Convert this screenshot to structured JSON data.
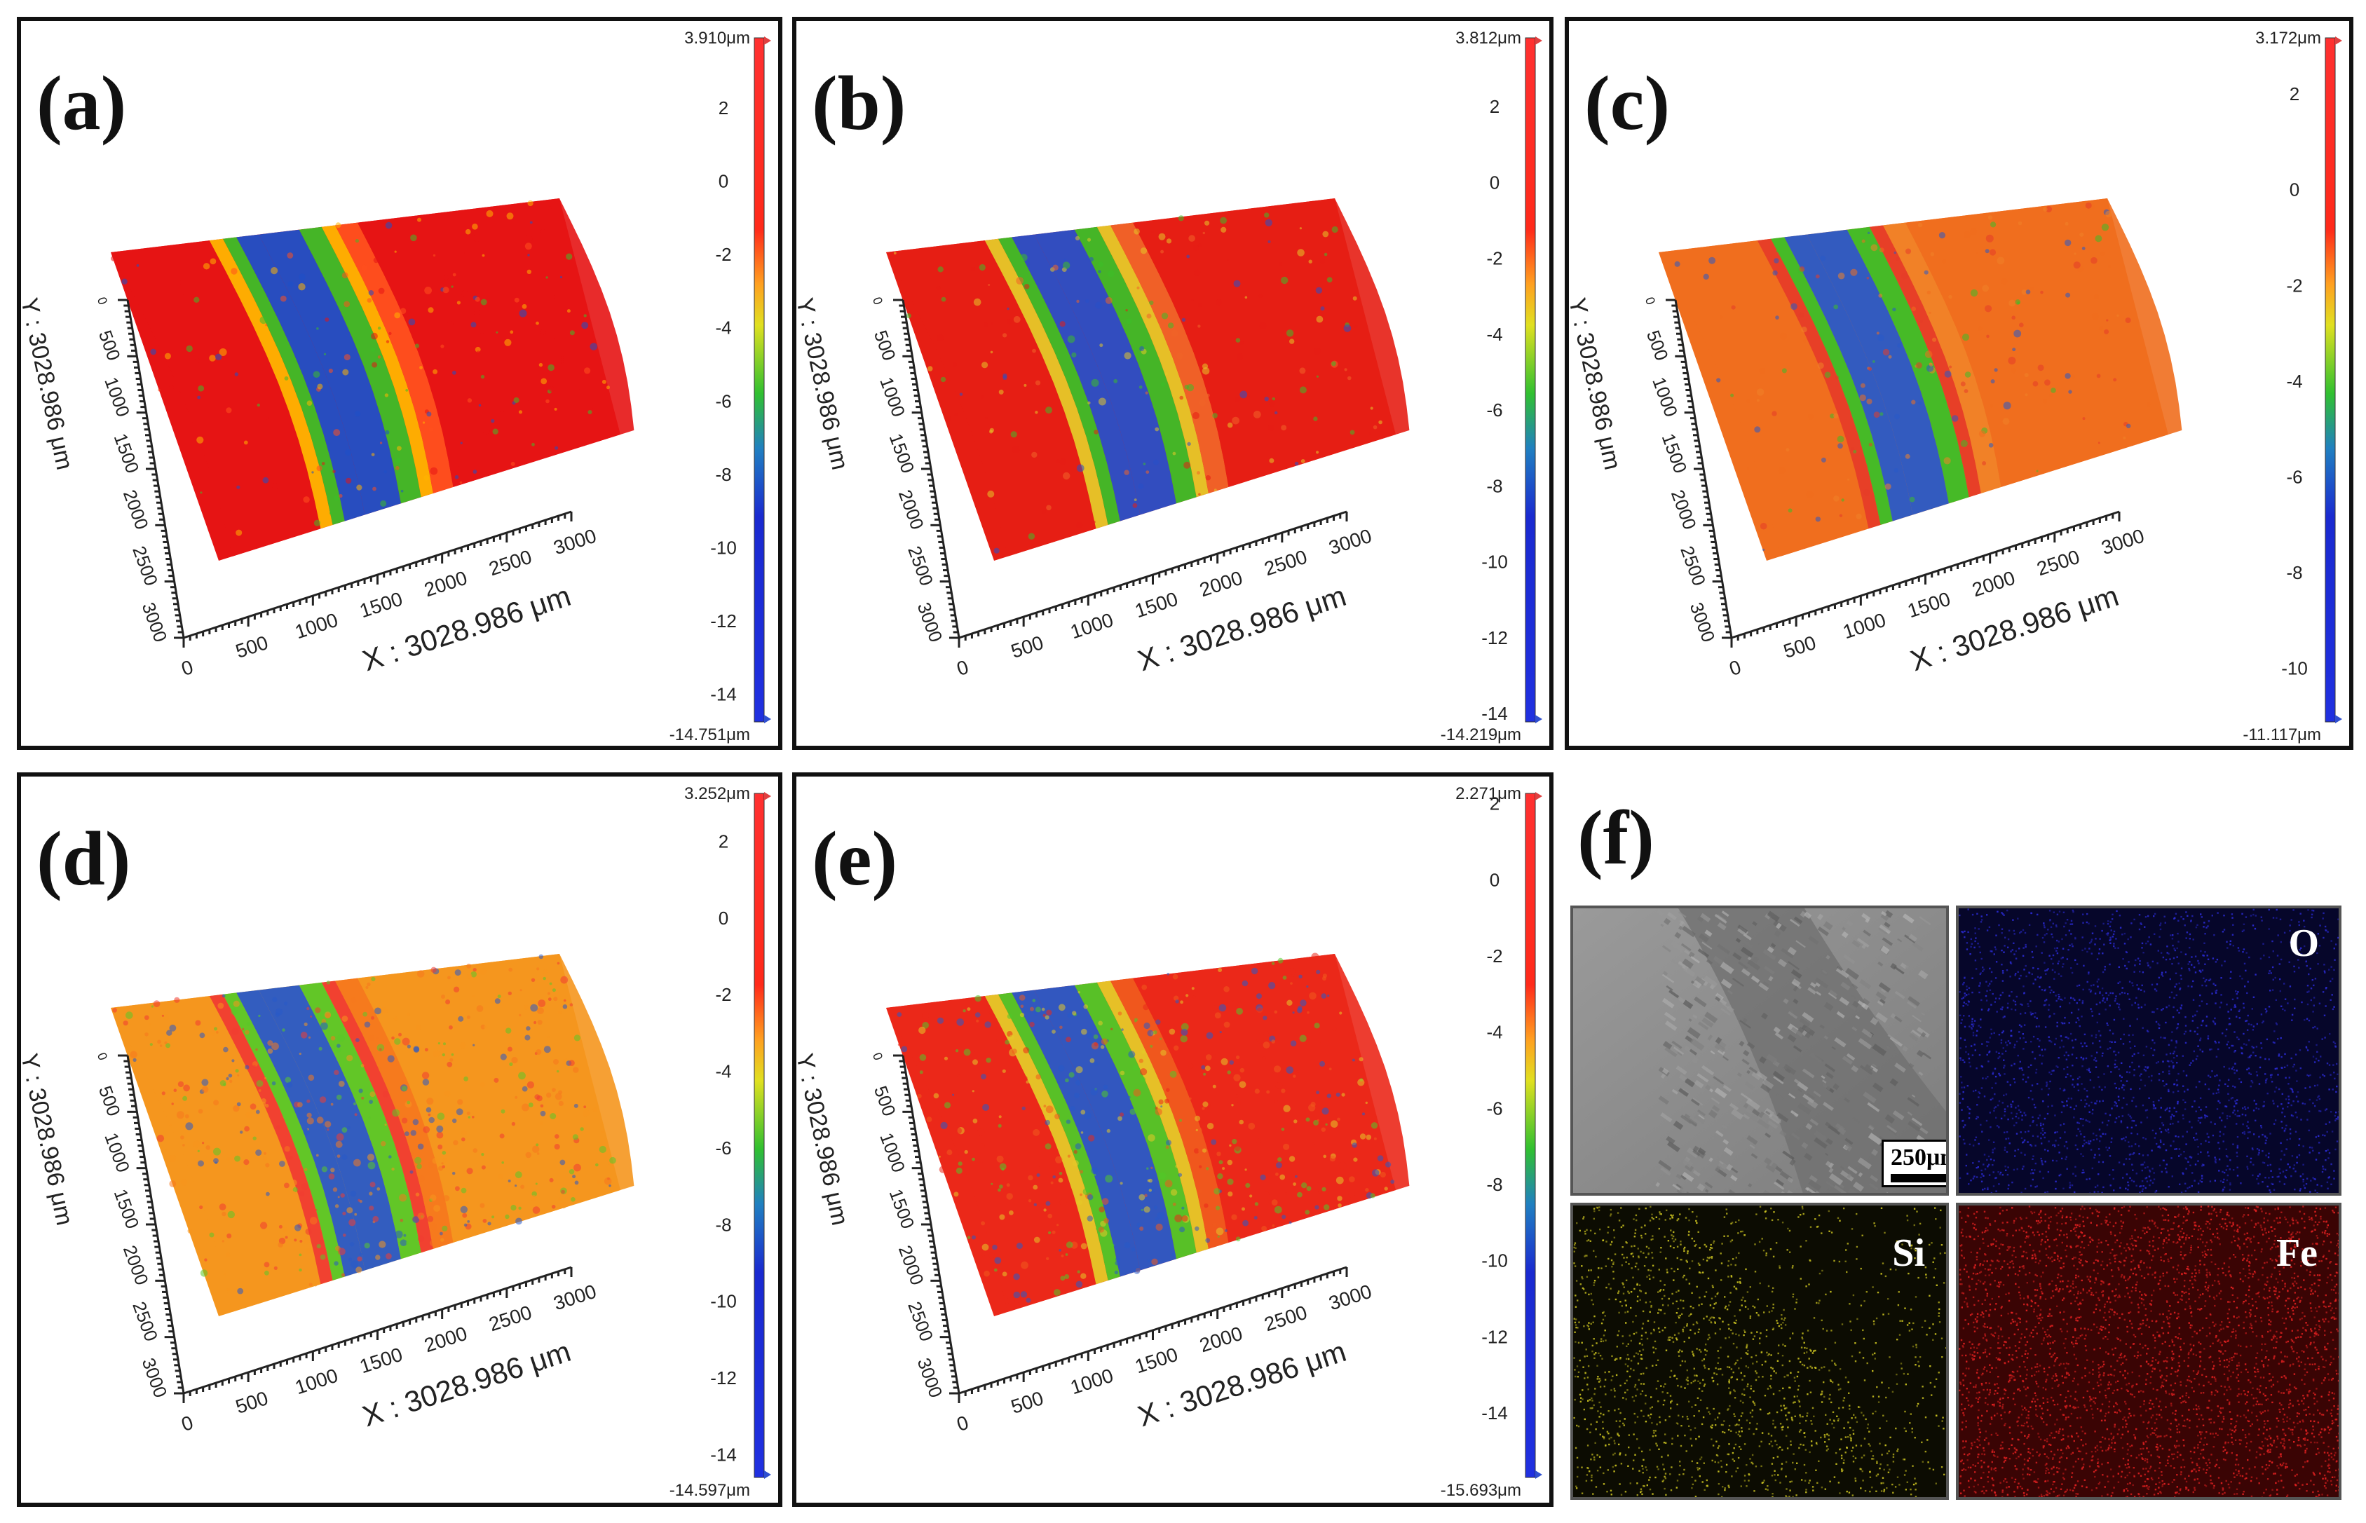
{
  "figure": {
    "panels": [
      {
        "label": "(a)",
        "scale_max": "3.910μm",
        "scale_min": "-14.751μm",
        "ticks": [
          "2",
          "0",
          "-2",
          "-4",
          "-6",
          "-8",
          "-10",
          "-12",
          "-14"
        ],
        "tick_values": [
          2,
          0,
          -2,
          -4,
          -6,
          -8,
          -10,
          -12,
          -14
        ],
        "range": [
          -14.751,
          3.91
        ],
        "x_axis_label": "X : 3028.986 μm",
        "y_axis_label": "Y : 3028.986 μm",
        "x_ticks": [
          "0",
          "500",
          "1000",
          "1500",
          "2000",
          "2500",
          "3000"
        ],
        "y_ticks": [
          "0",
          "500",
          "1000",
          "1500",
          "2000",
          "2500",
          "3000"
        ],
        "color_rgb": [
          [
            230,
            20,
            20
          ],
          [
            255,
            80,
            30
          ],
          [
            255,
            180,
            0
          ],
          [
            60,
            190,
            40
          ],
          [
            30,
            80,
            200
          ]
        ]
      },
      {
        "label": "(b)",
        "scale_max": "3.812μm",
        "scale_min": "-14.219μm",
        "ticks": [
          "2",
          "0",
          "-2",
          "-4",
          "-6",
          "-8",
          "-10",
          "-12",
          "-14"
        ],
        "tick_values": [
          2,
          0,
          -2,
          -4,
          -6,
          -8,
          -10,
          -12,
          -14
        ],
        "range": [
          -14.219,
          3.812
        ],
        "x_axis_label": "X : 3028.986 μm",
        "y_axis_label": "Y : 3028.986 μm",
        "x_ticks": [
          "0",
          "500",
          "1000",
          "1500",
          "2000",
          "2500",
          "3000"
        ],
        "y_ticks": [
          "0",
          "500",
          "1000",
          "1500",
          "2000",
          "2500",
          "3000"
        ],
        "color_rgb": [
          [
            230,
            30,
            20
          ],
          [
            240,
            100,
            40
          ],
          [
            230,
            200,
            40
          ],
          [
            60,
            190,
            40
          ],
          [
            40,
            80,
            200
          ]
        ]
      },
      {
        "label": "(c)",
        "scale_max": "3.172μm",
        "scale_min": "-11.117μm",
        "ticks": [
          "2",
          "0",
          "-2",
          "-4",
          "-6",
          "-8",
          "-10"
        ],
        "tick_values": [
          2,
          0,
          -2,
          -4,
          -6,
          -8,
          -10
        ],
        "range": [
          -11.117,
          3.172
        ],
        "x_axis_label": "X : 3028.986 μm",
        "y_axis_label": "Y : 3028.986 μm",
        "x_ticks": [
          "0",
          "500",
          "1000",
          "1500",
          "2000",
          "2500",
          "3000"
        ],
        "y_ticks": [
          "0",
          "500",
          "1000",
          "1500",
          "2000",
          "2500",
          "3000"
        ],
        "color_rgb": [
          [
            240,
            110,
            30
          ],
          [
            240,
            130,
            40
          ],
          [
            230,
            60,
            40
          ],
          [
            60,
            190,
            40
          ],
          [
            40,
            90,
            200
          ]
        ]
      },
      {
        "label": "(d)",
        "scale_max": "3.252μm",
        "scale_min": "-14.597μm",
        "ticks": [
          "2",
          "0",
          "-2",
          "-4",
          "-6",
          "-8",
          "-10",
          "-12",
          "-14"
        ],
        "tick_values": [
          2,
          0,
          -2,
          -4,
          -6,
          -8,
          -10,
          -12,
          -14
        ],
        "range": [
          -14.597,
          3.252
        ],
        "x_axis_label": "X : 3028.986 μm",
        "y_axis_label": "Y : 3028.986 μm",
        "x_ticks": [
          "0",
          "500",
          "1000",
          "1500",
          "2000",
          "2500",
          "3000"
        ],
        "y_ticks": [
          "0",
          "500",
          "1000",
          "1500",
          "2000",
          "2500",
          "3000"
        ],
        "color_rgb": [
          [
            245,
            150,
            30
          ],
          [
            245,
            120,
            30
          ],
          [
            240,
            60,
            50
          ],
          [
            90,
            200,
            40
          ],
          [
            40,
            90,
            200
          ]
        ]
      },
      {
        "label": "(e)",
        "scale_max": "2.271μm",
        "scale_min": "-15.693μm",
        "ticks": [
          "2",
          "0",
          "-2",
          "-4",
          "-6",
          "-8",
          "-10",
          "-12",
          "-14"
        ],
        "tick_values": [
          2,
          0,
          -2,
          -4,
          -6,
          -8,
          -10,
          -12,
          -14
        ],
        "range": [
          -15.693,
          2.271
        ],
        "x_axis_label": "X : 3028.986 μm",
        "y_axis_label": "Y : 3028.986 μm",
        "x_ticks": [
          "0",
          "500",
          "1000",
          "1500",
          "2000",
          "2500",
          "3000"
        ],
        "y_ticks": [
          "0",
          "500",
          "1000",
          "1500",
          "2000",
          "2500",
          "3000"
        ],
        "color_rgb": [
          [
            235,
            40,
            25
          ],
          [
            240,
            90,
            30
          ],
          [
            230,
            200,
            40
          ],
          [
            80,
            200,
            40
          ],
          [
            40,
            90,
            200
          ]
        ]
      }
    ],
    "panel_f": {
      "label": "(f)",
      "scale_bar": "250μm",
      "maps": [
        {
          "element": "",
          "color": "#8a8a8a"
        },
        {
          "element": "O",
          "color": "#1a1a7a"
        },
        {
          "element": "Si",
          "color": "#6b6b10"
        },
        {
          "element": "Fe",
          "color": "#8b1010"
        }
      ]
    }
  }
}
